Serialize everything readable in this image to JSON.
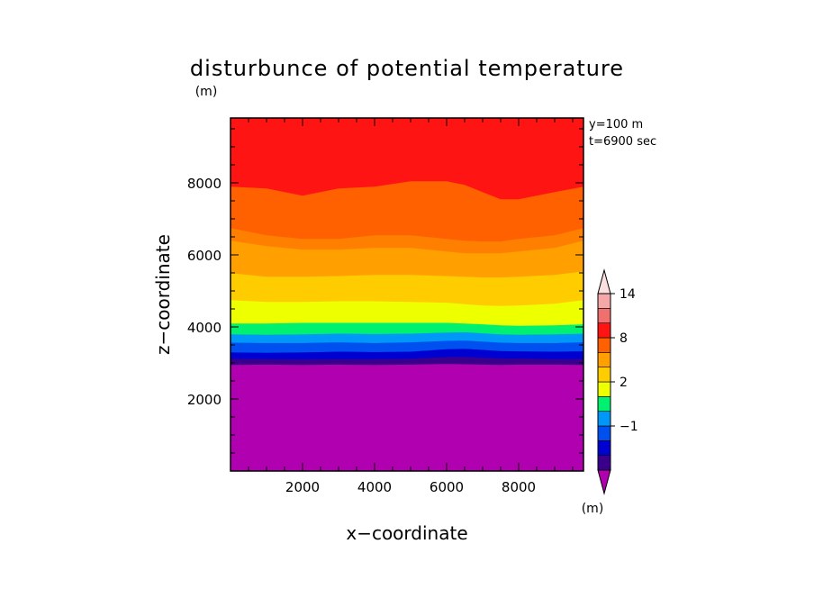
{
  "chart_data": {
    "type": "heatmap",
    "title": "disturbunce of potential temperature",
    "units_label": "(m)",
    "info": [
      "y=100 m",
      "t=6900 sec"
    ],
    "xlabel": "x−coordinate",
    "ylabel": "z−coordinate",
    "xlim": [
      0,
      9800
    ],
    "ylim": [
      0,
      9800
    ],
    "xticks": [
      {
        "value": 2000,
        "label": "2000"
      },
      {
        "value": 4000,
        "label": "4000"
      },
      {
        "value": 6000,
        "label": "6000"
      },
      {
        "value": 8000,
        "label": "8000"
      }
    ],
    "yticks": [
      {
        "value": 2000,
        "label": "2000"
      },
      {
        "value": 4000,
        "label": "4000"
      },
      {
        "value": 6000,
        "label": "6000"
      },
      {
        "value": 8000,
        "label": "8000"
      }
    ],
    "x": [
      0,
      1000,
      2000,
      3000,
      4000,
      5000,
      6000,
      6500,
      7000,
      7500,
      8000,
      9000,
      9800
    ],
    "boundaries": [
      {
        "level": -2,
        "z": [
          2950,
          2960,
          2950,
          2960,
          2950,
          2960,
          2980,
          2970,
          2960,
          2950,
          2960,
          2960,
          2950
        ]
      },
      {
        "level": -1,
        "z": [
          3120,
          3110,
          3100,
          3110,
          3110,
          3120,
          3170,
          3170,
          3150,
          3130,
          3130,
          3110,
          3110
        ]
      },
      {
        "level": 0,
        "z": [
          3300,
          3290,
          3300,
          3320,
          3310,
          3320,
          3390,
          3400,
          3370,
          3340,
          3330,
          3320,
          3330
        ]
      },
      {
        "level": 1,
        "z": [
          3570,
          3560,
          3560,
          3580,
          3560,
          3580,
          3620,
          3630,
          3600,
          3570,
          3560,
          3560,
          3580
        ]
      },
      {
        "level": 2,
        "z": [
          3800,
          3790,
          3800,
          3820,
          3810,
          3820,
          3850,
          3860,
          3830,
          3800,
          3790,
          3800,
          3820
        ]
      },
      {
        "level": 3,
        "z": [
          4100,
          4100,
          4120,
          4120,
          4120,
          4120,
          4120,
          4100,
          4080,
          4050,
          4040,
          4050,
          4080
        ]
      },
      {
        "level": 5,
        "z": [
          4750,
          4700,
          4700,
          4720,
          4720,
          4700,
          4680,
          4640,
          4600,
          4590,
          4600,
          4650,
          4750
        ]
      },
      {
        "level": 6,
        "z": [
          5500,
          5400,
          5400,
          5420,
          5450,
          5450,
          5420,
          5400,
          5380,
          5380,
          5400,
          5450,
          5550
        ]
      },
      {
        "level": 7,
        "z": [
          6400,
          6250,
          6150,
          6150,
          6200,
          6200,
          6100,
          6050,
          6050,
          6050,
          6100,
          6200,
          6400
        ]
      },
      {
        "level": 8,
        "z": [
          6750,
          6550,
          6450,
          6450,
          6550,
          6550,
          6450,
          6400,
          6380,
          6380,
          6450,
          6550,
          6750
        ]
      },
      {
        "level": 10,
        "z": [
          7900,
          7850,
          7650,
          7850,
          7900,
          8050,
          8050,
          7950,
          7750,
          7550,
          7550,
          7750,
          7900
        ]
      }
    ],
    "colors": [
      "#b000b0",
      "#3a008c",
      "#0000d0",
      "#0050f0",
      "#0098f8",
      "#00f070",
      "#eeff00",
      "#ffcc00",
      "#ff9f00",
      "#ff8000",
      "#ff6000",
      "#ff1414"
    ],
    "colorbar": {
      "colors": [
        "#b000b0",
        "#3a008c",
        "#0000d0",
        "#0050f0",
        "#0098f8",
        "#00f070",
        "#eeff00",
        "#ffcc00",
        "#ff9f00",
        "#ff6000",
        "#ff1414",
        "#f07070",
        "#f4a8a8",
        "#fce0e0"
      ],
      "labels": [
        {
          "after_index": 3,
          "text": "−1"
        },
        {
          "after_index": 6,
          "text": "2"
        },
        {
          "after_index": 9,
          "text": "8"
        },
        {
          "after_index": 12,
          "text": "14"
        }
      ],
      "units_label": "(m)"
    }
  }
}
